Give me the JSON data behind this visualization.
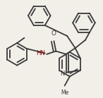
{
  "bg_color": "#f2efe9",
  "line_color": "#3a3a3a",
  "line_width": 1.3,
  "figsize": [
    1.46,
    1.39
  ],
  "dpi": 100,
  "xlim": [
    0,
    100
  ],
  "ylim": [
    0,
    95
  ]
}
